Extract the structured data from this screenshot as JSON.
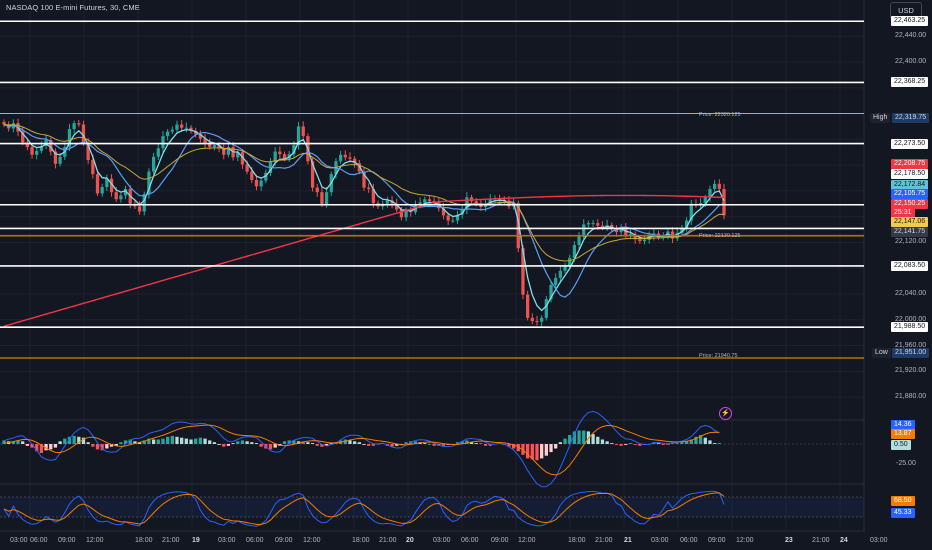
{
  "header": {
    "title": "NASDAQ 100 E-mini Futures, 30, CME",
    "currency": "USD"
  },
  "colors": {
    "bg": "#131722",
    "up": "#26a69a",
    "down": "#ef5350",
    "sma_long": "#f23645",
    "fast_ma": "#5b9cf6",
    "ema": "#80deea",
    "slow_ma": "#c8a83a",
    "level": "#ffffff",
    "orange_level": "#f7a600"
  },
  "price_scale": {
    "ticks": [
      "22,440.00",
      "22,400.00",
      "22,120.00",
      "22,040.00",
      "22,000.00",
      "21,960.00",
      "21,920.00",
      "21,880.00"
    ],
    "level_labels": [
      "22,463.25",
      "22,368.25",
      "22,273.50",
      "22,178.50",
      "22,141.75",
      "22,083.50",
      "21,988.50"
    ],
    "high": {
      "label": "High",
      "value": "22,319.75"
    },
    "low": {
      "label": "Low",
      "value": "21,951.00"
    },
    "tags": {
      "red_1": "22,208.75",
      "blue": "22,105.75",
      "teal": "22,172.84",
      "red_2": "22,150.25",
      "timer": "25:31",
      "yellow": "22,147.06"
    }
  },
  "price_labels": {
    "top": "Price: 22320.125",
    "mid": "Price: 22130.125",
    "low": "Price: 21940.75"
  },
  "macd": {
    "tags": {
      "blue": "14.36",
      "orange": "13.87",
      "hist": "0.50"
    },
    "tick": "-25.00"
  },
  "stoch": {
    "tags": {
      "orange": "68.50",
      "blue": "45.33"
    }
  },
  "time_axis": [
    "03:00",
    "06:00",
    "09:00",
    "12:00",
    "18:00",
    "21:00",
    "19",
    "03:00",
    "06:00",
    "09:00",
    "12:00",
    "18:00",
    "21:00",
    "20",
    "03:00",
    "06:00",
    "09:00",
    "12:00",
    "18:00",
    "21:00",
    "21",
    "03:00",
    "06:00",
    "09:00",
    "12:00",
    "23",
    "21:00",
    "24",
    "03:00"
  ],
  "chart_data": {
    "type": "candlestick",
    "timeframe": "30",
    "ylim": [
      21860,
      22490
    ],
    "levels": [
      22463.25,
      22368.25,
      22273.5,
      22178.5,
      22141.75,
      22083.5,
      21988.5
    ],
    "orange_levels": [
      22320.125,
      22130.125,
      21940.75
    ],
    "closes": [
      22303,
      22297,
      22305,
      22292,
      22275,
      22268,
      22256,
      22262,
      22270,
      22279,
      22261,
      22242,
      22253,
      22268,
      22296,
      22305,
      22303,
      22275,
      22248,
      22226,
      22196,
      22206,
      22219,
      22198,
      22187,
      22193,
      22203,
      22180,
      22176,
      22168,
      22195,
      22230,
      22253,
      22266,
      22285,
      22292,
      22295,
      22303,
      22298,
      22298,
      22293,
      22288,
      22281,
      22273,
      22268,
      22271,
      22266,
      22256,
      22268,
      22252,
      22260,
      22241,
      22230,
      22217,
      22207,
      22216,
      22228,
      22245,
      22261,
      22257,
      22250,
      22257,
      22271,
      22300,
      22285,
      22246,
      22205,
      22198,
      22179,
      22198,
      22226,
      22246,
      22256,
      22252,
      22250,
      22243,
      22230,
      22205,
      22203,
      22181,
      22176,
      22180,
      22185,
      22180,
      22171,
      22159,
      22169,
      22167,
      22178,
      22182,
      22187,
      22184,
      22182,
      22173,
      22162,
      22154,
      22154,
      22163,
      22171,
      22190,
      22184,
      22181,
      22175,
      22180,
      22187,
      22189,
      22186,
      22185,
      22176,
      22181,
      22111,
      22039,
      22003,
      21998,
      21997,
      22003,
      22032,
      22054,
      22065,
      22076,
      22084,
      22096,
      22116,
      22129,
      22148,
      22150,
      22150,
      22146,
      22143,
      22147,
      22142,
      22136,
      22143,
      22131,
      22133,
      22125,
      22122,
      22124,
      22130,
      22134,
      22128,
      22131,
      22137,
      22126,
      22135,
      22143,
      22154,
      22180,
      22178,
      22181,
      22190,
      22203,
      22211,
      22203,
      22162
    ],
    "macd_hist": [
      4,
      3,
      3,
      4,
      3,
      -2,
      -4,
      -8,
      -10,
      -7,
      -6,
      -4,
      3,
      6,
      8,
      9,
      8,
      7,
      2,
      -3,
      -6,
      -7,
      -5,
      -3,
      -2,
      2,
      4,
      5,
      3,
      2,
      4,
      6,
      5,
      5,
      6,
      8,
      9,
      8,
      7,
      6,
      5,
      6,
      7,
      6,
      4,
      2,
      -1,
      -3,
      -2,
      1,
      3,
      4,
      3,
      2,
      1,
      -3,
      -5,
      -6,
      -4,
      -2,
      3,
      4,
      4,
      3,
      3,
      2,
      1,
      -2,
      -3,
      -2,
      1,
      2,
      4,
      5,
      4,
      3,
      2,
      -1,
      -2,
      -2,
      0,
      1,
      -2,
      -3,
      -2,
      -1,
      2,
      3,
      3,
      2,
      1,
      0,
      -2,
      -2,
      -2,
      -1,
      0,
      2,
      3,
      4,
      2,
      1,
      1,
      -2,
      -2,
      0,
      1,
      -1,
      -3,
      -5,
      -8,
      -12,
      -16,
      -17,
      -18,
      -16,
      -13,
      -9,
      -5,
      2,
      6,
      10,
      14,
      15,
      15,
      14,
      11,
      8,
      5,
      3,
      1,
      -1,
      -2,
      -1,
      1,
      -1,
      -2,
      -1,
      0,
      2,
      1,
      -1,
      0,
      1,
      1,
      2,
      3,
      5,
      8,
      10,
      7,
      4,
      1,
      1
    ]
  }
}
